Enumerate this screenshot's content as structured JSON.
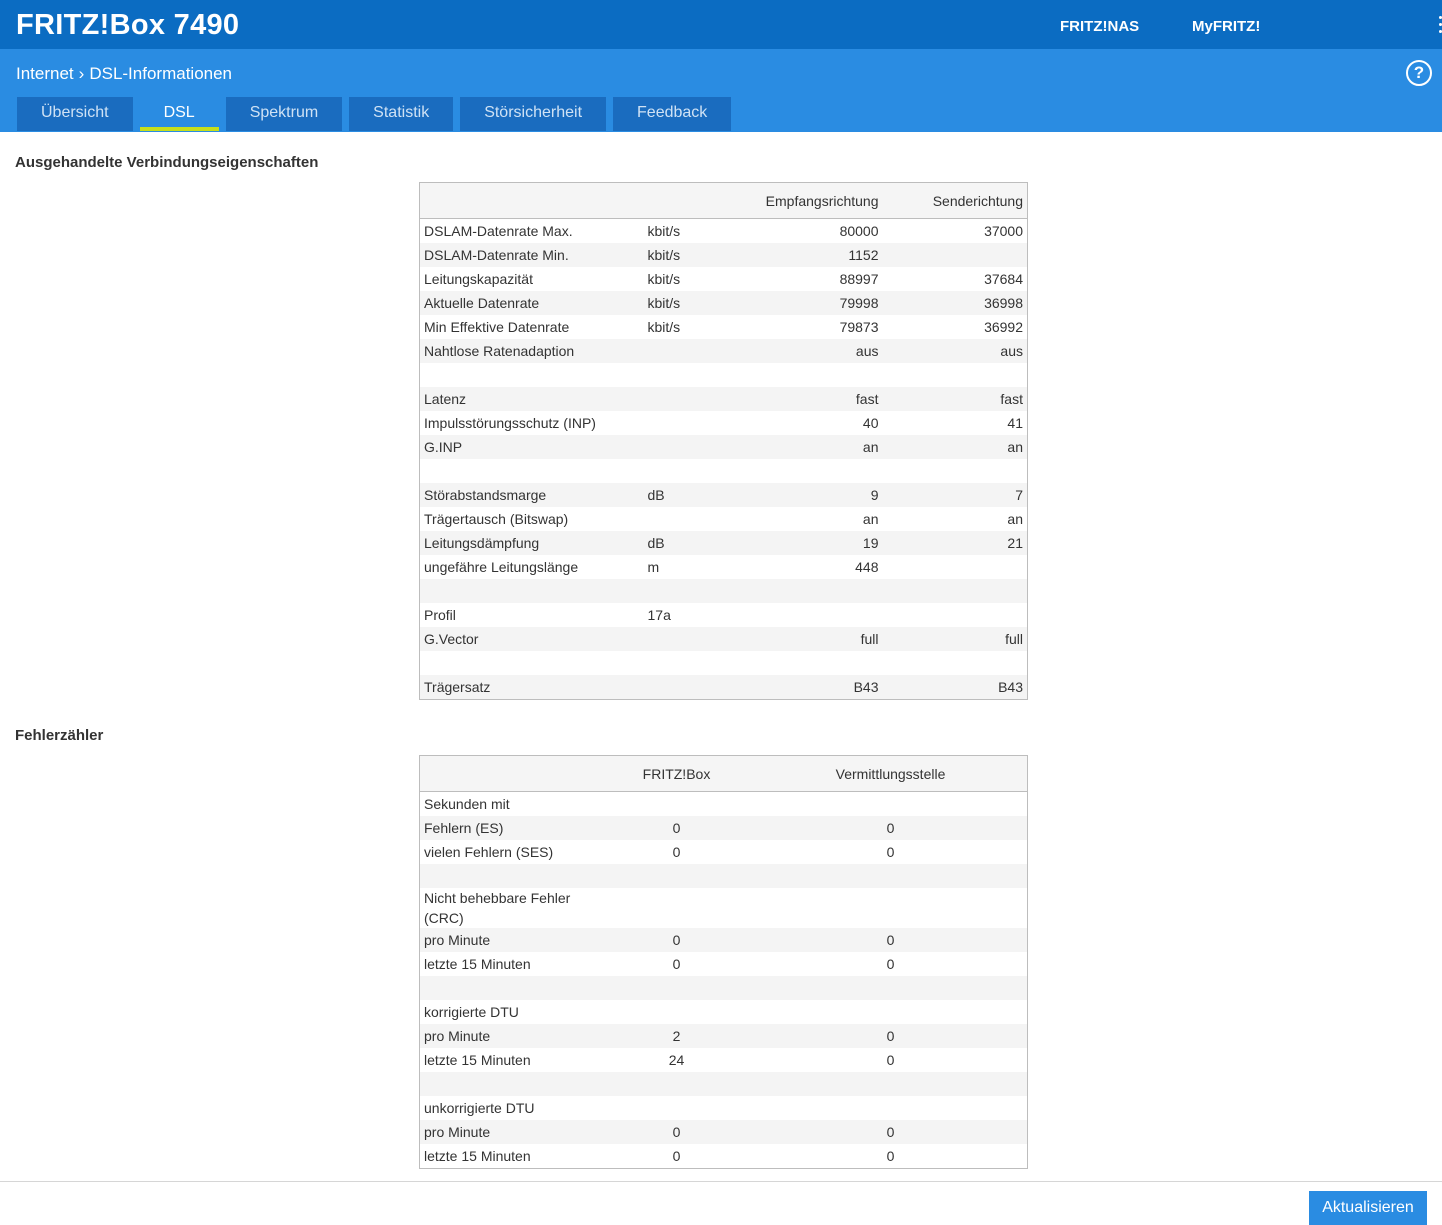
{
  "header": {
    "title": "FRITZ!Box 7490",
    "links": [
      "FRITZ!NAS",
      "MyFRITZ!"
    ],
    "help": "?"
  },
  "breadcrumb": [
    "Internet",
    "DSL-Informationen"
  ],
  "tabs": {
    "items": [
      "Übersicht",
      "DSL",
      "Spektrum",
      "Statistik",
      "Störsicherheit",
      "Feedback"
    ],
    "active": 1
  },
  "connection": {
    "heading": "Ausgehandelte Verbindungseigenschaften",
    "columns": [
      "Empfangsrichtung",
      "Senderichtung"
    ],
    "rows": [
      {
        "label": "DSLAM-Datenrate Max.",
        "unit": "kbit/s",
        "values": [
          80000,
          37000
        ]
      },
      {
        "label": "DSLAM-Datenrate Min.",
        "unit": "kbit/s",
        "values": [
          1152,
          null
        ]
      },
      {
        "label": "Leitungskapazität",
        "unit": "kbit/s",
        "values": [
          88997,
          37684
        ]
      },
      {
        "label": "Aktuelle Datenrate",
        "unit": "kbit/s",
        "values": [
          79998,
          36998
        ]
      },
      {
        "label": "Min Effektive Datenrate",
        "unit": "kbit/s",
        "values": [
          79873,
          36992
        ]
      },
      {
        "label": "Nahtlose Ratenadaption",
        "values": [
          "aus",
          "aus"
        ]
      },
      null,
      {
        "label": "Latenz",
        "values": [
          "fast",
          "fast"
        ]
      },
      {
        "label": "Impulsstörungsschutz (INP)",
        "values": [
          40,
          41
        ]
      },
      {
        "label": "G.INP",
        "values": [
          "an",
          "an"
        ]
      },
      null,
      {
        "label": "Störabstandsmarge",
        "unit": "dB",
        "values": [
          9,
          7
        ]
      },
      {
        "label": "Trägertausch (Bitswap)",
        "values": [
          "an",
          "an"
        ]
      },
      {
        "label": "Leitungsdämpfung",
        "unit": "dB",
        "values": [
          19,
          21
        ]
      },
      {
        "label": "ungefähre Leitungslänge",
        "unit": "m",
        "values": [
          448,
          null
        ]
      },
      null,
      {
        "label": "Profil",
        "unit": "17a"
      },
      {
        "label": "G.Vector",
        "values": [
          "full",
          "full"
        ]
      },
      null,
      {
        "label": "Trägersatz",
        "values": [
          "B43",
          "B43"
        ]
      }
    ]
  },
  "errors": {
    "heading": "Fehlerzähler",
    "columns": [
      "FRITZ!Box",
      "Vermittlungsstelle"
    ],
    "rows": [
      {
        "label": "Sekunden mit"
      },
      {
        "label": "Fehlern (ES)",
        "values": [
          0,
          0
        ]
      },
      {
        "label": "vielen Fehlern (SES)",
        "values": [
          0,
          0
        ]
      },
      null,
      {
        "label": "Nicht behebbare Fehler (CRC)"
      },
      {
        "label": "pro Minute",
        "values": [
          0,
          0
        ]
      },
      {
        "label": "letzte 15 Minuten",
        "values": [
          0,
          0
        ]
      },
      null,
      {
        "label": "korrigierte DTU"
      },
      {
        "label": "pro Minute",
        "values": [
          2,
          0
        ]
      },
      {
        "label": "letzte 15 Minuten",
        "values": [
          24,
          0
        ]
      },
      null,
      {
        "label": "unkorrigierte DTU"
      },
      {
        "label": "pro Minute",
        "values": [
          0,
          0
        ]
      },
      {
        "label": "letzte 15 Minuten",
        "values": [
          0,
          0
        ]
      }
    ]
  },
  "footer": {
    "button": "Aktualisieren"
  }
}
